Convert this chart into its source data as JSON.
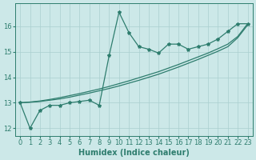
{
  "title": "",
  "xlabel": "Humidex (Indice chaleur)",
  "bg_color": "#cce8e8",
  "line_color": "#2e7d6e",
  "grid_color": "#aacfcf",
  "x_data": [
    0,
    1,
    2,
    3,
    4,
    5,
    6,
    7,
    8,
    9,
    10,
    11,
    12,
    13,
    14,
    15,
    16,
    17,
    18,
    19,
    20,
    21,
    22,
    23
  ],
  "y_main": [
    13.0,
    12.0,
    12.7,
    12.9,
    12.9,
    13.0,
    13.05,
    13.1,
    12.9,
    14.85,
    16.55,
    15.75,
    15.2,
    15.1,
    14.95,
    15.3,
    15.3,
    15.1,
    15.2,
    15.3,
    15.5,
    15.8,
    16.1,
    16.1
  ],
  "y_line1": [
    13.0,
    13.02,
    13.05,
    13.1,
    13.15,
    13.22,
    13.3,
    13.38,
    13.47,
    13.56,
    13.66,
    13.77,
    13.88,
    14.0,
    14.12,
    14.26,
    14.4,
    14.55,
    14.7,
    14.86,
    15.02,
    15.2,
    15.55,
    16.05
  ],
  "y_line2": [
    13.0,
    13.03,
    13.07,
    13.13,
    13.2,
    13.28,
    13.36,
    13.45,
    13.54,
    13.64,
    13.75,
    13.86,
    13.98,
    14.1,
    14.22,
    14.36,
    14.5,
    14.65,
    14.8,
    14.95,
    15.12,
    15.3,
    15.6,
    16.1
  ],
  "xlim": [
    -0.5,
    23.5
  ],
  "ylim": [
    11.7,
    16.9
  ],
  "yticks": [
    12,
    13,
    14,
    15,
    16
  ],
  "xticks": [
    0,
    1,
    2,
    3,
    4,
    5,
    6,
    7,
    8,
    9,
    10,
    11,
    12,
    13,
    14,
    15,
    16,
    17,
    18,
    19,
    20,
    21,
    22,
    23
  ],
  "label_fontsize": 7,
  "tick_fontsize": 6
}
